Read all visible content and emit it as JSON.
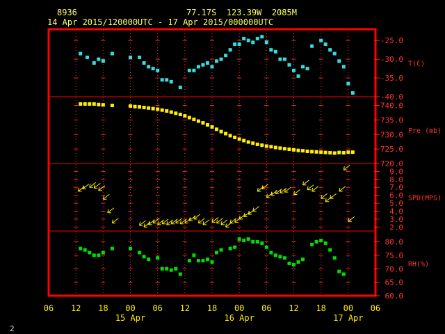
{
  "header": {
    "station_id": "8936",
    "location": "77.17S  123.39W  2085M",
    "time_range": "14 Apr 2015/120000UTC - 17 Apr 2015/000000UTC"
  },
  "footer": {
    "page_number": "2"
  },
  "colors": {
    "frame": "#ff0000",
    "temperature": "#33dddd",
    "pressure": "#ffee00",
    "wind": "#ffee00",
    "humidity": "#00dd00",
    "axis_text": "#ffee00",
    "panel_text": "#ff3333",
    "header_text": "#ffff66"
  },
  "x_axis": {
    "hour_ticks": [
      "06",
      "12",
      "18",
      "00",
      "06",
      "12",
      "18",
      "00",
      "06",
      "12",
      "18",
      "00",
      "06"
    ],
    "date_labels": [
      "15 Apr",
      "16 Apr",
      "17 Apr"
    ],
    "grid_hours": [
      12,
      18,
      24,
      30,
      36,
      42,
      48,
      54,
      60,
      66,
      72
    ]
  },
  "chart_data": [
    {
      "type": "scatter",
      "ylabel": "T(C)",
      "yticks": [
        "-25.0",
        "-30.0",
        "-35.0",
        "-40.0"
      ],
      "ylim": [
        -40,
        -22
      ],
      "x_unit": "hours since 14 Apr 2015 00UTC",
      "points": [
        [
          13,
          -28.5
        ],
        [
          14.5,
          -29.5
        ],
        [
          16,
          -31
        ],
        [
          17,
          -30
        ],
        [
          18,
          -30.5
        ],
        [
          20,
          -28.5
        ],
        [
          24,
          -29.5
        ],
        [
          26,
          -29.5
        ],
        [
          27,
          -31
        ],
        [
          28,
          -32
        ],
        [
          29,
          -32.5
        ],
        [
          30,
          -33
        ],
        [
          31,
          -35.5
        ],
        [
          32,
          -35.5
        ],
        [
          33,
          -36
        ],
        [
          35,
          -37.5
        ],
        [
          37,
          -33
        ],
        [
          38,
          -33
        ],
        [
          39,
          -32
        ],
        [
          40,
          -31.5
        ],
        [
          41,
          -31
        ],
        [
          42,
          -32
        ],
        [
          43,
          -30.5
        ],
        [
          44,
          -30
        ],
        [
          45,
          -29
        ],
        [
          46,
          -27.5
        ],
        [
          47,
          -26
        ],
        [
          48,
          -26
        ],
        [
          49,
          -24.5
        ],
        [
          50,
          -25
        ],
        [
          51,
          -25.5
        ],
        [
          52,
          -24.5
        ],
        [
          53,
          -24
        ],
        [
          54,
          -25.5
        ],
        [
          55,
          -27.5
        ],
        [
          56,
          -28
        ],
        [
          57,
          -30
        ],
        [
          58,
          -30
        ],
        [
          59,
          -31.5
        ],
        [
          60,
          -33
        ],
        [
          61,
          -34.5
        ],
        [
          62,
          -32
        ],
        [
          63,
          -32.5
        ],
        [
          64,
          -26.5
        ],
        [
          66,
          -25
        ],
        [
          67,
          -26
        ],
        [
          68,
          -27.5
        ],
        [
          69,
          -28.5
        ],
        [
          70,
          -30.5
        ],
        [
          71,
          -32
        ],
        [
          72,
          -36.5
        ],
        [
          73,
          -39
        ]
      ]
    },
    {
      "type": "scatter",
      "ylabel": "Pre (mb)",
      "yticks": [
        "740.0",
        "735.0",
        "730.0",
        "725.0",
        "720.0"
      ],
      "ylim": [
        720,
        743
      ],
      "x_unit": "hours since 14 Apr 2015 00UTC",
      "points": [
        [
          13,
          740.5
        ],
        [
          14,
          740.5
        ],
        [
          15,
          740.5
        ],
        [
          16,
          740.5
        ],
        [
          17,
          740.3
        ],
        [
          18,
          740.2
        ],
        [
          20,
          740.0
        ],
        [
          24,
          739.8
        ],
        [
          25,
          739.6
        ],
        [
          26,
          739.5
        ],
        [
          27,
          739.3
        ],
        [
          28,
          739.1
        ],
        [
          29,
          738.9
        ],
        [
          30,
          738.7
        ],
        [
          31,
          738.4
        ],
        [
          32,
          738.1
        ],
        [
          33,
          737.7
        ],
        [
          34,
          737.3
        ],
        [
          35,
          736.9
        ],
        [
          36,
          736.4
        ],
        [
          37,
          735.8
        ],
        [
          38,
          735.2
        ],
        [
          39,
          734.6
        ],
        [
          40,
          734.0
        ],
        [
          41,
          733.3
        ],
        [
          42,
          732.6
        ],
        [
          43,
          731.8
        ],
        [
          44,
          731.0
        ],
        [
          45,
          730.3
        ],
        [
          46,
          729.6
        ],
        [
          47,
          729.0
        ],
        [
          48,
          728.4
        ],
        [
          49,
          727.9
        ],
        [
          50,
          727.4
        ],
        [
          51,
          727.0
        ],
        [
          52,
          726.6
        ],
        [
          53,
          726.3
        ],
        [
          54,
          726.0
        ],
        [
          55,
          725.8
        ],
        [
          56,
          725.5
        ],
        [
          57,
          725.3
        ],
        [
          58,
          725.1
        ],
        [
          59,
          724.9
        ],
        [
          60,
          724.7
        ],
        [
          61,
          724.5
        ],
        [
          62,
          724.4
        ],
        [
          63,
          724.2
        ],
        [
          64,
          724.1
        ],
        [
          65,
          724.0
        ],
        [
          66,
          723.9
        ],
        [
          67,
          723.8
        ],
        [
          68,
          723.7
        ],
        [
          69,
          723.6
        ],
        [
          70,
          723.8
        ],
        [
          71,
          723.7
        ],
        [
          72,
          723.9
        ],
        [
          73,
          723.9
        ]
      ]
    },
    {
      "type": "scatter",
      "ylabel": "SPD(MPS)",
      "yticks": [
        "9.0",
        "8.0",
        "7.0",
        "6.0",
        "5.0",
        "4.0",
        "3.0",
        "2.0"
      ],
      "ylim": [
        1.5,
        10
      ],
      "x_unit": "hours since 14 Apr 2015 00UTC",
      "points": [
        [
          12.5,
          6.5
        ],
        [
          13.5,
          6.8
        ],
        [
          15,
          7.0
        ],
        [
          16,
          6.9
        ],
        [
          17,
          6.6
        ],
        [
          18,
          5.5
        ],
        [
          19,
          3.8
        ],
        [
          20,
          2.5
        ],
        [
          26,
          2.2
        ],
        [
          27,
          2.0
        ],
        [
          28,
          2.3
        ],
        [
          29,
          2.5
        ],
        [
          30,
          2.3
        ],
        [
          31,
          2.4
        ],
        [
          32,
          2.3
        ],
        [
          33,
          2.4
        ],
        [
          34,
          2.5
        ],
        [
          35,
          2.4
        ],
        [
          36,
          2.5
        ],
        [
          37,
          2.8
        ],
        [
          38,
          3.0
        ],
        [
          39,
          2.5
        ],
        [
          40,
          2.3
        ],
        [
          42,
          2.6
        ],
        [
          43,
          2.5
        ],
        [
          44,
          2.3
        ],
        [
          45,
          2.0
        ],
        [
          46,
          2.5
        ],
        [
          47,
          2.6
        ],
        [
          48,
          3.0
        ],
        [
          49,
          3.3
        ],
        [
          50,
          3.6
        ],
        [
          51,
          4.0
        ],
        [
          52,
          6.5
        ],
        [
          53,
          6.8
        ],
        [
          54,
          5.7
        ],
        [
          55,
          6.0
        ],
        [
          56,
          6.2
        ],
        [
          57,
          6.3
        ],
        [
          58,
          6.4
        ],
        [
          60,
          6.1
        ],
        [
          62,
          7.3
        ],
        [
          63,
          6.7
        ],
        [
          64,
          6.5
        ],
        [
          66,
          5.6
        ],
        [
          67,
          5.2
        ],
        [
          68,
          5.6
        ],
        [
          70,
          6.5
        ],
        [
          71,
          9.2
        ],
        [
          72,
          2.7
        ]
      ]
    },
    {
      "type": "scatter",
      "ylabel": "RH(%)",
      "yticks": [
        "80.0",
        "75.0",
        "70.0",
        "65.0",
        "60.0"
      ],
      "ylim": [
        60,
        84
      ],
      "x_unit": "hours since 14 Apr 2015 00UTC",
      "points": [
        [
          13,
          77.5
        ],
        [
          14,
          77
        ],
        [
          15,
          76
        ],
        [
          16,
          75
        ],
        [
          17,
          75
        ],
        [
          18,
          76
        ],
        [
          20,
          77.5
        ],
        [
          24,
          77.5
        ],
        [
          26,
          76
        ],
        [
          27,
          74.5
        ],
        [
          28,
          73.5
        ],
        [
          30,
          74
        ],
        [
          31,
          70
        ],
        [
          32,
          70
        ],
        [
          33,
          69.5
        ],
        [
          34,
          70
        ],
        [
          35,
          68
        ],
        [
          37,
          73
        ],
        [
          38,
          75
        ],
        [
          39,
          73
        ],
        [
          40,
          73
        ],
        [
          41,
          73.5
        ],
        [
          42,
          72.5
        ],
        [
          43,
          76
        ],
        [
          44,
          77
        ],
        [
          46,
          77.5
        ],
        [
          47,
          78
        ],
        [
          48,
          81
        ],
        [
          49,
          80.5
        ],
        [
          50,
          81
        ],
        [
          51,
          80
        ],
        [
          52,
          80
        ],
        [
          53,
          79.5
        ],
        [
          54,
          78
        ],
        [
          55,
          76
        ],
        [
          56,
          75
        ],
        [
          57,
          74.5
        ],
        [
          58,
          74
        ],
        [
          59,
          72
        ],
        [
          60,
          71.5
        ],
        [
          61,
          72.5
        ],
        [
          62,
          73.5
        ],
        [
          64,
          79
        ],
        [
          65,
          80
        ],
        [
          66,
          80.5
        ],
        [
          67,
          79.5
        ],
        [
          68,
          77
        ],
        [
          69,
          74
        ],
        [
          70,
          69
        ],
        [
          71,
          68
        ]
      ]
    }
  ]
}
